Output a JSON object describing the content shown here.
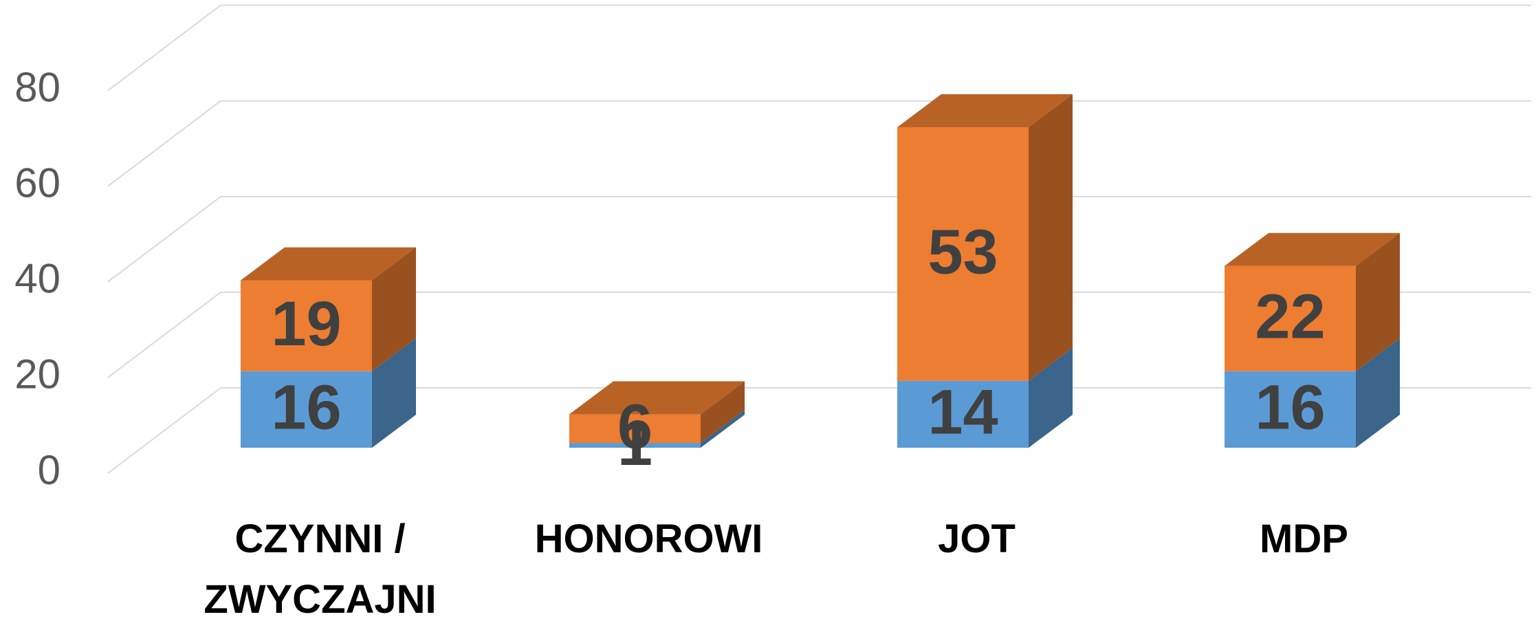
{
  "chart_data": {
    "type": "bar3d-stacked",
    "categories": [
      "CZYNNI / ZWYCZAJNI",
      "HONOROWI",
      "JOT",
      "MDP"
    ],
    "series": [
      {
        "color": "#5b9bd5",
        "values": [
          16,
          1,
          14,
          16
        ]
      },
      {
        "color": "#ed7d31",
        "values": [
          19,
          6,
          53,
          22
        ]
      }
    ],
    "ylim": [
      0,
      80
    ],
    "yticks": [
      0,
      20,
      40,
      60,
      80
    ],
    "grid": true
  }
}
